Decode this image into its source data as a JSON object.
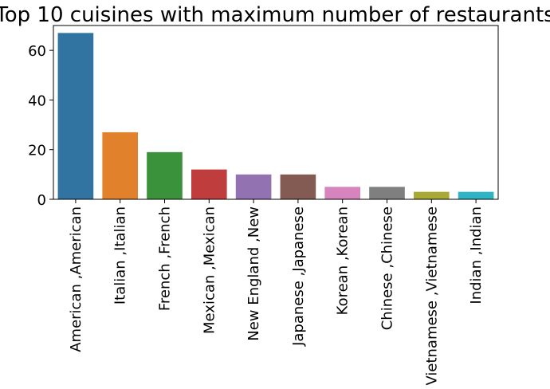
{
  "chart_data": {
    "type": "bar",
    "title": "Top 10 cuisines with maximum number of restaurants",
    "xlabel": "",
    "ylabel": "",
    "categories": [
      "American ,American",
      "Italian ,Italian",
      "French ,French",
      "Mexican ,Mexican",
      "New England ,New",
      "Japanese ,Japanese",
      "Korean ,Korean",
      "Chinese ,Chinese",
      "Vietnamese ,Vietnamese",
      "Indian ,Indian"
    ],
    "values": [
      67,
      27,
      19,
      12,
      10,
      10,
      5,
      5,
      3,
      3
    ],
    "colors": [
      "#3274a1",
      "#e1812c",
      "#3a923a",
      "#c03d3e",
      "#9372b2",
      "#845b53",
      "#d684bd",
      "#7f7f7f",
      "#a9aa35",
      "#2eb4c4"
    ],
    "ylim": [
      0,
      70
    ],
    "yticks": [
      0,
      20,
      40,
      60
    ],
    "grid": false
  }
}
